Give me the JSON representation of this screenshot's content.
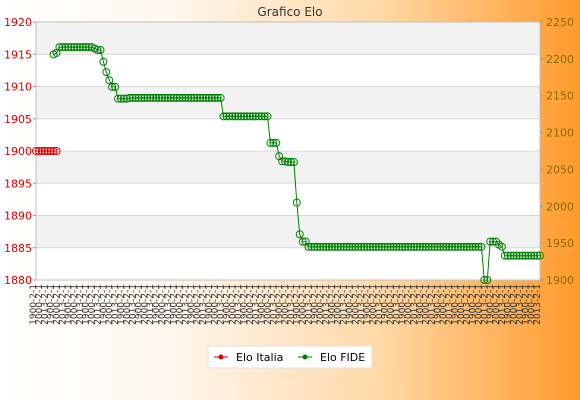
{
  "chart_data": {
    "type": "line",
    "title": "Grafico Elo",
    "y_left": {
      "ticks": [
        1880,
        1885,
        1890,
        1895,
        1900,
        1905,
        1910,
        1915,
        1920
      ],
      "range": [
        1880,
        1920
      ]
    },
    "y_right": {
      "ticks": [
        1900,
        1950,
        2000,
        2050,
        2100,
        2150,
        2200,
        2250
      ],
      "range": [
        1900,
        2250
      ]
    },
    "legend_position": "bottom-center",
    "series": [
      {
        "name": "Elo Italia",
        "axis": "left",
        "color": "#dd0000",
        "marker": "circle",
        "points": [
          [
            1,
            1900
          ],
          [
            2,
            1900
          ],
          [
            3,
            1900
          ],
          [
            4,
            1900
          ],
          [
            5,
            1900
          ],
          [
            6,
            1900
          ],
          [
            7,
            1900
          ],
          [
            8,
            1900
          ]
        ]
      },
      {
        "name": "Elo FIDE",
        "axis": "right",
        "color": "#008000",
        "marker": "circle",
        "points": [
          [
            7,
            2206
          ],
          [
            8,
            2208
          ],
          [
            9,
            2216
          ],
          [
            10,
            2216
          ],
          [
            11,
            2216
          ],
          [
            12,
            2216
          ],
          [
            13,
            2216
          ],
          [
            14,
            2216
          ],
          [
            15,
            2216
          ],
          [
            16,
            2216
          ],
          [
            17,
            2216
          ],
          [
            18,
            2216
          ],
          [
            19,
            2216
          ],
          [
            20,
            2216
          ],
          [
            21,
            2214
          ],
          [
            22,
            2212
          ],
          [
            23,
            2212
          ],
          [
            24,
            2196
          ],
          [
            25,
            2182
          ],
          [
            26,
            2171
          ],
          [
            27,
            2162
          ],
          [
            28,
            2162
          ],
          [
            29,
            2146
          ],
          [
            30,
            2146
          ],
          [
            31,
            2146
          ],
          [
            32,
            2146
          ],
          [
            33,
            2147
          ],
          [
            34,
            2147
          ],
          [
            35,
            2147
          ],
          [
            36,
            2147
          ],
          [
            37,
            2147
          ],
          [
            38,
            2147
          ],
          [
            39,
            2147
          ],
          [
            40,
            2147
          ],
          [
            41,
            2147
          ],
          [
            42,
            2147
          ],
          [
            43,
            2147
          ],
          [
            44,
            2147
          ],
          [
            45,
            2147
          ],
          [
            46,
            2147
          ],
          [
            47,
            2147
          ],
          [
            48,
            2147
          ],
          [
            49,
            2147
          ],
          [
            50,
            2147
          ],
          [
            51,
            2147
          ],
          [
            52,
            2147
          ],
          [
            53,
            2147
          ],
          [
            54,
            2147
          ],
          [
            55,
            2147
          ],
          [
            56,
            2147
          ],
          [
            57,
            2147
          ],
          [
            58,
            2147
          ],
          [
            59,
            2147
          ],
          [
            60,
            2147
          ],
          [
            61,
            2147
          ],
          [
            62,
            2147
          ],
          [
            63,
            2147
          ],
          [
            64,
            2147
          ],
          [
            65,
            2122
          ],
          [
            66,
            2122
          ],
          [
            67,
            2122
          ],
          [
            68,
            2122
          ],
          [
            69,
            2122
          ],
          [
            70,
            2122
          ],
          [
            71,
            2122
          ],
          [
            72,
            2122
          ],
          [
            73,
            2122
          ],
          [
            74,
            2122
          ],
          [
            75,
            2122
          ],
          [
            76,
            2122
          ],
          [
            77,
            2122
          ],
          [
            78,
            2122
          ],
          [
            79,
            2122
          ],
          [
            80,
            2122
          ],
          [
            81,
            2086
          ],
          [
            82,
            2086
          ],
          [
            83,
            2086
          ],
          [
            84,
            2068
          ],
          [
            85,
            2061
          ],
          [
            86,
            2061
          ],
          [
            87,
            2060
          ],
          [
            88,
            2060
          ],
          [
            89,
            2060
          ],
          [
            90,
            2005
          ],
          [
            91,
            1962
          ],
          [
            92,
            1952
          ],
          [
            93,
            1952
          ],
          [
            94,
            1945
          ],
          [
            95,
            1945
          ],
          [
            96,
            1945
          ],
          [
            97,
            1945
          ],
          [
            98,
            1945
          ],
          [
            99,
            1945
          ],
          [
            100,
            1945
          ],
          [
            101,
            1945
          ],
          [
            102,
            1945
          ],
          [
            103,
            1945
          ],
          [
            104,
            1945
          ],
          [
            105,
            1945
          ],
          [
            106,
            1945
          ],
          [
            107,
            1945
          ],
          [
            108,
            1945
          ],
          [
            109,
            1945
          ],
          [
            110,
            1945
          ],
          [
            111,
            1945
          ],
          [
            112,
            1945
          ],
          [
            113,
            1945
          ],
          [
            114,
            1945
          ],
          [
            115,
            1945
          ],
          [
            116,
            1945
          ],
          [
            117,
            1945
          ],
          [
            118,
            1945
          ],
          [
            119,
            1945
          ],
          [
            120,
            1945
          ],
          [
            121,
            1945
          ],
          [
            122,
            1945
          ],
          [
            123,
            1945
          ],
          [
            124,
            1945
          ],
          [
            125,
            1945
          ],
          [
            126,
            1945
          ],
          [
            127,
            1945
          ],
          [
            128,
            1945
          ],
          [
            129,
            1945
          ],
          [
            130,
            1945
          ],
          [
            131,
            1945
          ],
          [
            132,
            1945
          ],
          [
            133,
            1945
          ],
          [
            134,
            1945
          ],
          [
            135,
            1945
          ],
          [
            136,
            1945
          ],
          [
            137,
            1945
          ],
          [
            138,
            1945
          ],
          [
            139,
            1945
          ],
          [
            140,
            1945
          ],
          [
            141,
            1945
          ],
          [
            142,
            1945
          ],
          [
            143,
            1945
          ],
          [
            144,
            1945
          ],
          [
            145,
            1945
          ],
          [
            146,
            1945
          ],
          [
            147,
            1945
          ],
          [
            148,
            1945
          ],
          [
            149,
            1945
          ],
          [
            150,
            1945
          ],
          [
            151,
            1945
          ],
          [
            152,
            1945
          ],
          [
            153,
            1945
          ],
          [
            154,
            1900
          ],
          [
            155,
            1900
          ],
          [
            156,
            1952
          ],
          [
            157,
            1952
          ],
          [
            158,
            1952
          ],
          [
            159,
            1948
          ],
          [
            160,
            1945
          ],
          [
            161,
            1933
          ],
          [
            162,
            1933
          ],
          [
            163,
            1933
          ],
          [
            164,
            1933
          ],
          [
            165,
            1933
          ],
          [
            166,
            1933
          ],
          [
            167,
            1933
          ],
          [
            168,
            1933
          ],
          [
            169,
            1933
          ],
          [
            170,
            1933
          ],
          [
            171,
            1933
          ],
          [
            172,
            1933
          ],
          [
            173,
            1933
          ]
        ]
      }
    ],
    "xaxis": {
      "range": [
        1,
        173
      ],
      "labels_visible": "dense rotated labels, unreadable (e.g. '1900-2-1', '2013-2-1')",
      "sample_labels": [
        "1900-1-1",
        "1900-2-1",
        "2000-1-1",
        "2000-2-1",
        "2013-1-1",
        "2013-2-1"
      ]
    },
    "grid": true
  }
}
